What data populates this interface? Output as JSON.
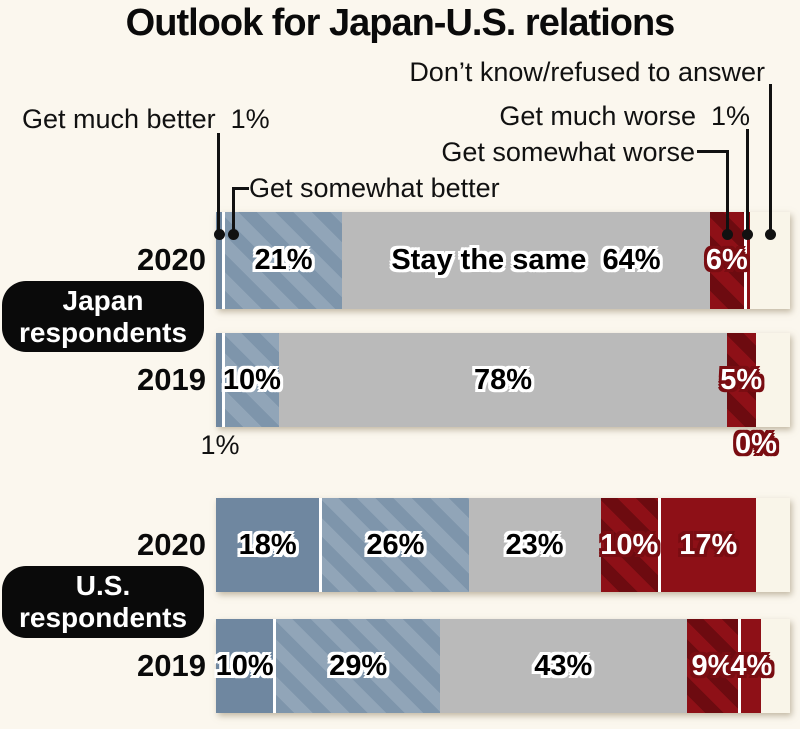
{
  "title": "Outlook for Japan-U.S. relations",
  "annotations": {
    "dont_know": "Don’t know/refused to answer",
    "much_better": "Get much better  1%",
    "much_worse": "Get much worse  1%",
    "somewhat_worse": "Get somewhat worse",
    "somewhat_better": "Get somewhat better"
  },
  "badges": {
    "japan": [
      "Japan",
      "respondents"
    ],
    "us": [
      "U.S.",
      "respondents"
    ]
  },
  "bars": {
    "japan_2020": {
      "year": "2020",
      "segments": {
        "much_better": {
          "value": 1,
          "label": ""
        },
        "somewhat_better": {
          "value": 21,
          "label": "21%"
        },
        "same": {
          "value": 64,
          "label": "Stay the same  64%"
        },
        "somewhat_worse": {
          "value": 6,
          "label": "6%"
        },
        "much_worse": {
          "value": 1,
          "label": ""
        },
        "dont_know": {
          "value": 7,
          "label": ""
        }
      }
    },
    "japan_2019": {
      "year": "2019",
      "segments": {
        "much_better": {
          "value": 1,
          "label": ""
        },
        "somewhat_better": {
          "value": 10,
          "label": "10%"
        },
        "same": {
          "value": 78,
          "label": "78%"
        },
        "somewhat_worse": {
          "value": 5,
          "label": "5%"
        },
        "much_worse": {
          "value": 0,
          "label": ""
        },
        "dont_know": {
          "value": 6,
          "label": ""
        }
      },
      "below_labels": {
        "much_better": "1%",
        "much_worse": "0%"
      }
    },
    "us_2020": {
      "year": "2020",
      "segments": {
        "much_better": {
          "value": 18,
          "label": "18%"
        },
        "somewhat_better": {
          "value": 26,
          "label": "26%"
        },
        "same": {
          "value": 23,
          "label": "23%"
        },
        "somewhat_worse": {
          "value": 10,
          "label": "10%"
        },
        "much_worse": {
          "value": 17,
          "label": "17%"
        },
        "dont_know": {
          "value": 6,
          "label": ""
        }
      }
    },
    "us_2019": {
      "year": "2019",
      "segments": {
        "much_better": {
          "value": 10,
          "label": "10%"
        },
        "somewhat_better": {
          "value": 29,
          "label": "29%"
        },
        "same": {
          "value": 43,
          "label": "43%"
        },
        "somewhat_worse": {
          "value": 9,
          "label": "9%"
        },
        "much_worse": {
          "value": 4,
          "label": "4%"
        },
        "dont_know": {
          "value": 5,
          "label": ""
        }
      }
    }
  },
  "colors": {
    "background": "#fbf7ee",
    "much_better_blue": "#6f87a0",
    "somewhat_better_blue_stripe": [
      "#7e95ab",
      "#91a5b8"
    ],
    "stay_same_gray": "#bababa",
    "somewhat_worse_red_stripe": [
      "#8e1017",
      "#6d0b10"
    ],
    "much_worse_red": "#8e1017",
    "dont_know_cream": "#f9f5e9",
    "separator_white": "#ffffff",
    "text_black": "#0a0a0a",
    "badge_black": "#0a0a0a"
  },
  "chart_data": {
    "type": "bar",
    "orientation": "horizontal-stacked",
    "unit": "%",
    "title": "Outlook for Japan-U.S. relations",
    "categories": [
      "Japan respondents 2020",
      "Japan respondents 2019",
      "U.S. respondents 2020",
      "U.S. respondents 2019"
    ],
    "series": [
      {
        "name": "Get much better",
        "values": [
          1,
          1,
          18,
          10
        ]
      },
      {
        "name": "Get somewhat better",
        "values": [
          21,
          10,
          26,
          29
        ]
      },
      {
        "name": "Stay the same",
        "values": [
          64,
          78,
          23,
          43
        ]
      },
      {
        "name": "Get somewhat worse",
        "values": [
          6,
          5,
          10,
          9
        ]
      },
      {
        "name": "Get much worse",
        "values": [
          1,
          0,
          17,
          4
        ]
      },
      {
        "name": "Don't know/refused to answer",
        "values": [
          7,
          6,
          6,
          5
        ]
      }
    ],
    "xlim": [
      0,
      100
    ],
    "legend_position": "annotated-callouts",
    "grid": false
  }
}
